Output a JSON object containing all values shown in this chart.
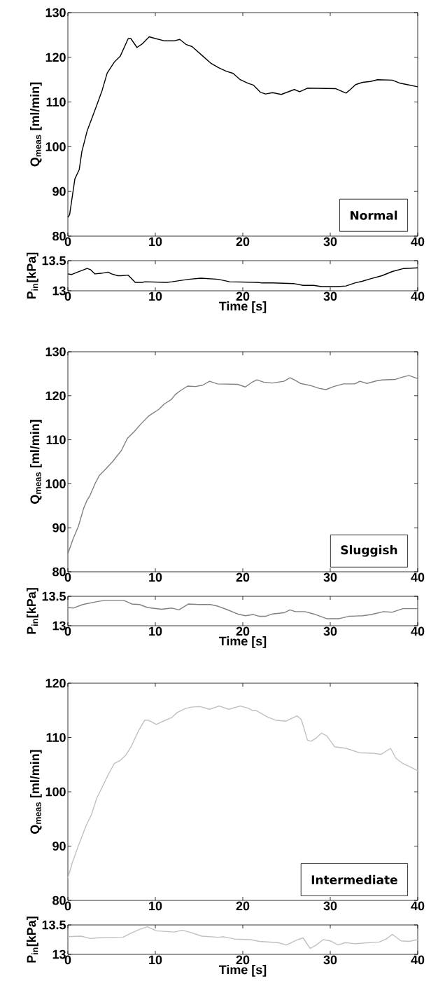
{
  "chart_data": [
    {
      "type": "line",
      "ylabel": "Q$_{meas}$ [ml/min]",
      "annotations": [
        "Normal"
      ],
      "xlim": [
        0,
        40
      ],
      "xticks": [
        0,
        10,
        20,
        30,
        40
      ],
      "ylim": [
        80,
        130
      ],
      "yticks": [
        80,
        90,
        100,
        110,
        120,
        130
      ],
      "series": [
        {
          "color": "#000000",
          "x": [
            0,
            0.2,
            0.8,
            1.3,
            1.6,
            2.2,
            3.1,
            3.9,
            4.5,
            5.3,
            6.0,
            6.9,
            7.2,
            7.9,
            8.5,
            9.3,
            10.0,
            11.0,
            12.2,
            12.8,
            13.5,
            14.2,
            15.3,
            16.4,
            17.2,
            18.1,
            18.9,
            19.7,
            20.6,
            21.2,
            22.0,
            22.6,
            23.4,
            24.4,
            25.9,
            26.5,
            27.4,
            30.6,
            31.8,
            32.3,
            32.9,
            33.7,
            34.6,
            35.4,
            37.1,
            38.0,
            38.8,
            40
          ],
          "values": [
            84.2,
            84.8,
            92.8,
            94.9,
            98.9,
            103.5,
            108.2,
            112.5,
            116.5,
            118.9,
            120.3,
            124.2,
            124.2,
            122.2,
            123.0,
            124.6,
            124.2,
            123.7,
            123.7,
            124.0,
            122.9,
            122.4,
            120.5,
            118.6,
            117.7,
            116.9,
            116.4,
            115.0,
            114.2,
            113.8,
            112.2,
            111.8,
            112.1,
            111.7,
            112.8,
            112.3,
            113.1,
            113.0,
            112.0,
            112.8,
            113.9,
            114.4,
            114.6,
            115.0,
            114.9,
            114.2,
            113.9,
            113.4
          ]
        }
      ]
    },
    {
      "type": "line",
      "ylabel": "P$_{in}$[kPa]",
      "xlabel": "Time [s]",
      "xlim": [
        0,
        40
      ],
      "xticks": [
        0,
        10,
        20,
        30,
        40
      ],
      "ylim": [
        13,
        13.5
      ],
      "yticks": [
        13,
        13.5
      ],
      "series": [
        {
          "color": "#000000",
          "x": [
            0,
            0.4,
            1.1,
            2.2,
            2.6,
            3.1,
            3.8,
            4.6,
            5.0,
            5.7,
            6.1,
            6.9,
            7.7,
            8.5,
            8.8,
            11.3,
            11.9,
            13.8,
            15.2,
            17.2,
            18.5,
            21.7,
            22.2,
            23.4,
            25.8,
            26.9,
            28.1,
            29.0,
            30.8,
            31.8,
            32.8,
            33.7,
            34.6,
            35.9,
            37.1,
            38.4,
            40
          ],
          "values": [
            13.28,
            13.27,
            13.31,
            13.37,
            13.35,
            13.28,
            13.29,
            13.31,
            13.28,
            13.25,
            13.25,
            13.26,
            13.14,
            13.14,
            13.15,
            13.14,
            13.15,
            13.19,
            13.21,
            13.19,
            13.15,
            13.14,
            13.13,
            13.13,
            13.12,
            13.09,
            13.09,
            13.07,
            13.07,
            13.08,
            13.13,
            13.16,
            13.2,
            13.25,
            13.32,
            13.37,
            13.38
          ]
        }
      ]
    },
    {
      "type": "line",
      "ylabel": "Q$_{meas}$ [ml/min]",
      "annotations": [
        "Sluggish"
      ],
      "xlim": [
        0,
        40
      ],
      "xticks": [
        0,
        10,
        20,
        30,
        40
      ],
      "ylim": [
        80,
        130
      ],
      "yticks": [
        80,
        90,
        100,
        110,
        120,
        130
      ],
      "series": [
        {
          "color": "#808080",
          "x": [
            0,
            0.6,
            1.2,
            1.8,
            2.2,
            2.5,
            3.1,
            3.6,
            4.2,
            5.1,
            6.1,
            6.8,
            7.6,
            8.4,
            9.3,
            10.4,
            11.0,
            11.8,
            12.3,
            12.9,
            13.7,
            14.6,
            15.4,
            16.2,
            17.1,
            19.4,
            20.3,
            21.0,
            21.6,
            22.4,
            23.4,
            24.7,
            25.4,
            25.9,
            26.6,
            27.8,
            28.7,
            29.5,
            30.4,
            31.5,
            32.8,
            33.4,
            34.2,
            35.3,
            35.9,
            37.4,
            38.2,
            39.0,
            40
          ],
          "values": [
            84.1,
            87.5,
            90.3,
            94.4,
            96.3,
            97.2,
            100.0,
            101.9,
            103.1,
            105.0,
            107.5,
            110.3,
            111.9,
            113.7,
            115.5,
            116.9,
            118.1,
            119.1,
            120.3,
            121.2,
            122.2,
            122.1,
            122.4,
            123.3,
            122.7,
            122.6,
            122.0,
            123.0,
            123.6,
            123.1,
            122.9,
            123.3,
            124.1,
            123.6,
            122.8,
            122.3,
            121.7,
            121.4,
            122.1,
            122.7,
            122.7,
            123.3,
            122.8,
            123.4,
            123.6,
            123.7,
            124.2,
            124.6,
            123.9
          ]
        }
      ]
    },
    {
      "type": "line",
      "ylabel": "P$_{in}$[kPa]",
      "xlabel": "Time [s]",
      "xlim": [
        0,
        40
      ],
      "xticks": [
        0,
        10,
        20,
        30,
        40
      ],
      "ylim": [
        13,
        13.5
      ],
      "yticks": [
        13,
        13.5
      ],
      "series": [
        {
          "color": "#808080",
          "x": [
            0,
            0.6,
            1.7,
            3.3,
            4.2,
            6.4,
            7.3,
            8.2,
            9.1,
            10.7,
            11.9,
            12.7,
            13.8,
            15.0,
            16.3,
            17.2,
            18.1,
            19.4,
            20.3,
            21.2,
            21.9,
            22.6,
            23.4,
            24.7,
            25.4,
            26.0,
            27.1,
            28.1,
            29.6,
            31.0,
            32.1,
            33.7,
            34.7,
            36.1,
            37.1,
            38.3,
            39.0,
            40
          ],
          "values": [
            13.31,
            13.3,
            13.36,
            13.41,
            13.43,
            13.43,
            13.37,
            13.36,
            13.31,
            13.28,
            13.3,
            13.27,
            13.37,
            13.36,
            13.36,
            13.33,
            13.28,
            13.2,
            13.17,
            13.19,
            13.16,
            13.16,
            13.2,
            13.22,
            13.27,
            13.24,
            13.24,
            13.2,
            13.12,
            13.12,
            13.16,
            13.17,
            13.19,
            13.24,
            13.23,
            13.29,
            13.29,
            13.29
          ]
        }
      ]
    },
    {
      "type": "line",
      "ylabel": "Q$_{meas}$ [ml/min]",
      "annotations": [
        "Intermediate"
      ],
      "xlim": [
        0,
        40
      ],
      "xticks": [
        0,
        10,
        20,
        30,
        40
      ],
      "ylim": [
        80,
        120
      ],
      "yticks": [
        80,
        90,
        100,
        110,
        120
      ],
      "series": [
        {
          "color": "#c0c0c0",
          "x": [
            0,
            0.5,
            1.3,
            2.1,
            2.7,
            3.3,
            4.0,
            4.6,
            5.3,
            6.0,
            6.6,
            7.2,
            7.8,
            8.1,
            8.8,
            9.2,
            10.1,
            10.9,
            11.9,
            12.5,
            13.4,
            14.1,
            15.1,
            16.2,
            17.3,
            18.4,
            19.7,
            20.6,
            21.1,
            21.5,
            22.8,
            23.7,
            24.9,
            26.2,
            26.7,
            27.4,
            27.8,
            28.4,
            29.0,
            29.6,
            30.5,
            31.8,
            32.4,
            33.3,
            34.9,
            35.8,
            36.9,
            37.5,
            38.3,
            39.0,
            40
          ],
          "values": [
            84.1,
            86.9,
            90.5,
            93.8,
            95.8,
            98.8,
            101.1,
            103.1,
            105.2,
            105.8,
            106.7,
            108.2,
            110.3,
            111.3,
            113.2,
            113.2,
            112.4,
            113.0,
            113.7,
            114.6,
            115.3,
            115.6,
            115.7,
            115.2,
            115.8,
            115.2,
            115.8,
            115.4,
            115.0,
            115.0,
            113.8,
            113.2,
            113.0,
            114.0,
            113.3,
            109.5,
            109.3,
            109.9,
            110.8,
            110.3,
            108.3,
            108.0,
            107.7,
            107.2,
            107.1,
            106.9,
            108.0,
            106.2,
            105.2,
            104.7,
            103.9
          ]
        }
      ]
    },
    {
      "type": "line",
      "ylabel": "P$_{in}$[kPa]",
      "xlabel": "Time [s]",
      "xlim": [
        0,
        40
      ],
      "xticks": [
        0,
        10,
        20,
        30,
        40
      ],
      "ylim": [
        13,
        13.5
      ],
      "yticks": [
        13,
        13.5
      ],
      "series": [
        {
          "color": "#c0c0c0",
          "x": [
            0,
            1.5,
            2.6,
            3.3,
            6.3,
            7.2,
            8.3,
            9.1,
            10.1,
            12.2,
            13.1,
            14.1,
            15.3,
            17.2,
            17.8,
            19.1,
            20.9,
            21.9,
            24.0,
            25.0,
            26.1,
            26.9,
            27.7,
            28.4,
            29.2,
            30.0,
            30.9,
            31.7,
            32.8,
            35.6,
            36.4,
            37.1,
            38.1,
            39.0,
            40
          ],
          "values": [
            13.3,
            13.31,
            13.27,
            13.28,
            13.29,
            13.36,
            13.43,
            13.47,
            13.4,
            13.38,
            13.41,
            13.37,
            13.31,
            13.29,
            13.3,
            13.26,
            13.25,
            13.22,
            13.2,
            13.16,
            13.24,
            13.28,
            13.1,
            13.16,
            13.25,
            13.23,
            13.16,
            13.2,
            13.18,
            13.21,
            13.26,
            13.34,
            13.23,
            13.22,
            13.25
          ]
        }
      ]
    }
  ]
}
